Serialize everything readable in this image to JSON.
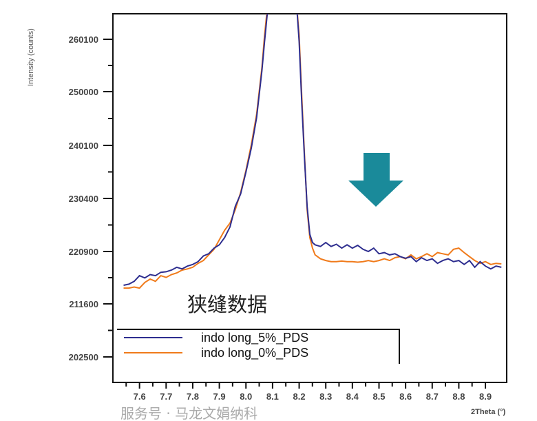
{
  "chart_data": {
    "type": "line",
    "xlabel": "2Theta (°)",
    "ylabel": "Intensity (counts)",
    "xlim": [
      7.5,
      8.98
    ],
    "x_ticks": [
      "7.6",
      "7.7",
      "7.8",
      "7.9",
      "8.0",
      "8.1",
      "8.2",
      "8.3",
      "8.4",
      "8.5",
      "8.6",
      "8.7",
      "8.8",
      "8.9"
    ],
    "y_ticks": [
      260100,
      250000,
      240100,
      230400,
      220900,
      211600,
      202500
    ],
    "y_tick_labels": [
      "260100",
      "250000",
      "240100",
      "230400",
      "220900",
      "211600",
      "202500"
    ],
    "grid": false,
    "legend_position": "bottom-left",
    "annotation": "狭缝数据",
    "x": [
      7.54,
      7.56,
      7.58,
      7.6,
      7.62,
      7.64,
      7.66,
      7.68,
      7.7,
      7.72,
      7.74,
      7.76,
      7.78,
      7.8,
      7.82,
      7.84,
      7.86,
      7.88,
      7.9,
      7.92,
      7.94,
      7.96,
      7.98,
      8.0,
      8.02,
      8.04,
      8.06,
      8.07,
      8.08,
      8.09,
      8.19,
      8.2,
      8.21,
      8.22,
      8.23,
      8.24,
      8.25,
      8.26,
      8.28,
      8.3,
      8.32,
      8.34,
      8.36,
      8.38,
      8.4,
      8.42,
      8.44,
      8.46,
      8.48,
      8.5,
      8.52,
      8.54,
      8.56,
      8.58,
      8.6,
      8.62,
      8.64,
      8.66,
      8.68,
      8.7,
      8.72,
      8.74,
      8.76,
      8.78,
      8.8,
      8.82,
      8.84,
      8.86,
      8.88,
      8.9,
      8.92,
      8.94,
      8.96
    ],
    "series": [
      {
        "name": "indo long_5%_PDS",
        "color": "#2e2e8f",
        "values": [
          214900,
          215100,
          215600,
          216600,
          216200,
          216800,
          216600,
          217200,
          217300,
          217600,
          218100,
          217800,
          218300,
          218600,
          219100,
          220100,
          220500,
          221500,
          222100,
          223400,
          225300,
          229000,
          231200,
          235200,
          239600,
          245200,
          254000,
          259700,
          265000,
          267000,
          267000,
          259700,
          247700,
          237700,
          229000,
          224000,
          222500,
          222100,
          221800,
          222500,
          221800,
          222200,
          221500,
          222100,
          221500,
          222000,
          221300,
          220900,
          221500,
          220500,
          220700,
          220300,
          220500,
          220000,
          219700,
          220000,
          219100,
          219800,
          219300,
          219600,
          218800,
          219300,
          219600,
          219100,
          219300,
          218600,
          219300,
          218100,
          219100,
          218300,
          217800,
          218300,
          218100
        ]
      },
      {
        "name": "indo long_0%_PDS",
        "color": "#f07a1a",
        "values": [
          214400,
          214400,
          214600,
          214400,
          215400,
          216000,
          215600,
          216600,
          216300,
          216800,
          217100,
          217600,
          217800,
          218100,
          218800,
          219300,
          220300,
          221300,
          223000,
          224700,
          226000,
          228400,
          231500,
          235500,
          240200,
          245800,
          254600,
          260900,
          266000,
          267000,
          267000,
          260900,
          248900,
          238300,
          228400,
          223400,
          221500,
          220300,
          219600,
          219300,
          219100,
          219100,
          219200,
          219100,
          219100,
          219000,
          219100,
          219300,
          219100,
          219300,
          219600,
          219300,
          219800,
          220000,
          219600,
          220300,
          219600,
          220000,
          220500,
          220000,
          220700,
          220500,
          220300,
          221300,
          221500,
          220700,
          220000,
          219300,
          218800,
          219100,
          218600,
          218800,
          218700
        ]
      }
    ]
  },
  "arrow_color": "#1a8a9a",
  "watermark": "服务号 · 马龙文娟纳科"
}
